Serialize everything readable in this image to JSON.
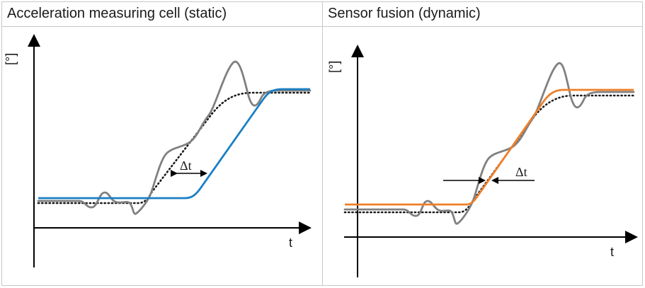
{
  "panels": [
    {
      "title": "Acceleration measuring cell (static)",
      "y_label": "[°]",
      "x_label": "t",
      "delta_label": "Δt",
      "filtered_color": "#1a7fc4"
    },
    {
      "title": "Sensor fusion (dynamic)",
      "y_label": "[°]",
      "x_label": "t",
      "delta_label": "Δt",
      "filtered_color": "#f07f2a"
    }
  ],
  "colors": {
    "raw_signal": "#808080",
    "ideal_signal": "#1a1a1a",
    "axis": "#000000"
  }
}
